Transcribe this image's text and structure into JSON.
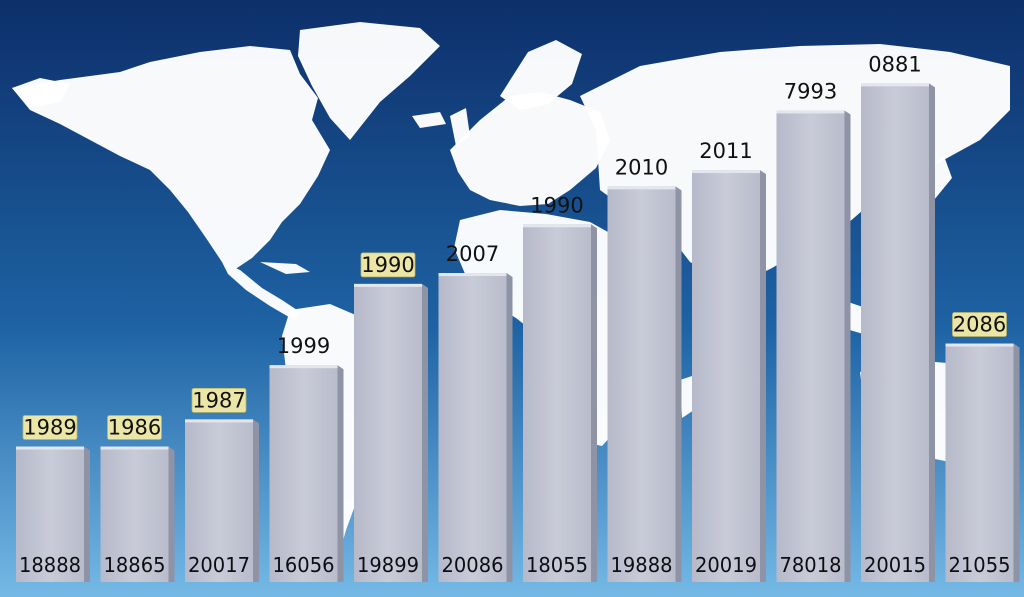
{
  "chart_data": {
    "type": "bar",
    "title": "",
    "xlabel": "",
    "ylabel": "",
    "ylim": [
      0,
      100
    ],
    "grid": false,
    "legend": "none",
    "background": "world map on blue gradient",
    "bars": [
      {
        "top_label": "1989",
        "base_label": "18888",
        "value": 25,
        "highlight": true
      },
      {
        "top_label": "1986",
        "base_label": "18865",
        "value": 25,
        "highlight": true
      },
      {
        "top_label": "1987",
        "base_label": "20017",
        "value": 30,
        "highlight": true
      },
      {
        "top_label": "1999",
        "base_label": "16056",
        "value": 40,
        "highlight": false
      },
      {
        "top_label": "1990",
        "base_label": "19899",
        "value": 55,
        "highlight": true
      },
      {
        "top_label": "2007",
        "base_label": "20086",
        "value": 57,
        "highlight": false
      },
      {
        "top_label": "1990",
        "base_label": "18055",
        "value": 66,
        "highlight": false
      },
      {
        "top_label": "2010",
        "base_label": "19888",
        "value": 73,
        "highlight": false
      },
      {
        "top_label": "2011",
        "base_label": "20019",
        "value": 76,
        "highlight": false
      },
      {
        "top_label": "7993",
        "base_label": "78018",
        "value": 87,
        "highlight": false
      },
      {
        "top_label": "0881",
        "base_label": "20015",
        "value": 92,
        "highlight": false
      },
      {
        "top_label": "2086",
        "base_label": "21055",
        "value": 44,
        "highlight": true
      }
    ]
  },
  "colors": {
    "sky_top": "#0d2f6a",
    "sky_mid": "#1e63a4",
    "sky_bottom": "#75b9e6",
    "land": "#ffffff",
    "bar_face": "#c3c5d3",
    "bar_side": "#8e93a6",
    "label_highlight": "#ece6a6"
  }
}
